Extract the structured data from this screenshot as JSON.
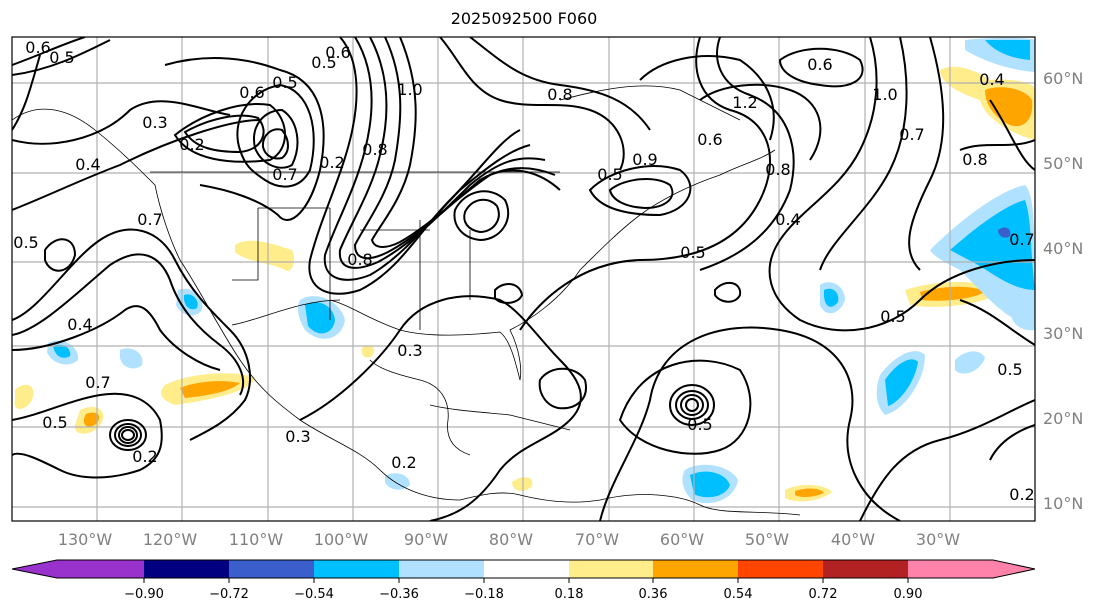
{
  "title": "2025092500 F060",
  "map": {
    "lon_labels": [
      "130°W",
      "120°W",
      "110°W",
      "100°W",
      "90°W",
      "80°W",
      "70°W",
      "60°W",
      "50°W",
      "40°W",
      "30°W"
    ],
    "lat_labels": [
      "60°N",
      "50°N",
      "40°N",
      "30°N",
      "20°N",
      "10°N"
    ],
    "contour_labels": [
      "0.6",
      "0.5",
      "0.3",
      "0.2",
      "0.4",
      "0.6",
      "0.5",
      "0.6",
      "0.5",
      "0.7",
      "0.2",
      "0.8",
      "1.0",
      "0.8",
      "0.7",
      "0.5",
      "0.4",
      "0.7",
      "0.5",
      "0.3",
      "0.3",
      "0.2",
      "0.5",
      "0.2",
      "0.5",
      "0.6",
      "0.9",
      "1.2",
      "1.0",
      "0.8",
      "0.7",
      "0.8",
      "0.4",
      "0.7",
      "0.5",
      "0.4",
      "0.5",
      "0.2",
      "0.5",
      "0.8",
      "0.6"
    ],
    "lonmin": -140,
    "lonmax": -20,
    "latmin": 8,
    "latmax": 65
  },
  "colorbar": {
    "colors": [
      "#9932cc",
      "#000080",
      "#3a5fcd",
      "#00bfff",
      "#b0e2ff",
      "#ffffff",
      "#ffec8b",
      "#ffa500",
      "#ff4500",
      "#b22222",
      "#ff82ab"
    ],
    "ticks": [
      "−0.90",
      "−0.72",
      "−0.54",
      "−0.36",
      "−0.18",
      "0.18",
      "0.36",
      "0.54",
      "0.72",
      "0.90"
    ]
  }
}
